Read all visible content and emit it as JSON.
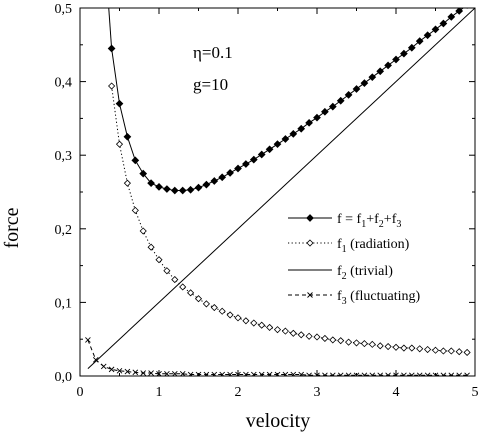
{
  "chart_data": {
    "type": "line",
    "xlabel": "velocity",
    "ylabel": "force",
    "xlim": [
      0,
      5
    ],
    "ylim": [
      0,
      0.5
    ],
    "xticks": [
      "0",
      "1",
      "2",
      "3",
      "4",
      "5"
    ],
    "yticks": [
      "0,0",
      "0,1",
      "0,2",
      "0,3",
      "0,4",
      "0,5"
    ],
    "grid": false,
    "legend_position": "right",
    "annotations": [
      {
        "text": "η=0.1"
      },
      {
        "text": "g=10"
      }
    ],
    "series": [
      {
        "name": "f = f1+f2+f3",
        "legend": {
          "base": "f = f",
          "parts": [
            [
              "1",
              "+f"
            ],
            [
              "2",
              "+f"
            ],
            [
              "3",
              ""
            ]
          ]
        },
        "marker": "filled-diamond",
        "line": "solid",
        "x": [
          0.4,
          0.5,
          0.6,
          0.7,
          0.8,
          0.9,
          1.0,
          1.1,
          1.2,
          1.3,
          1.4,
          1.5,
          1.6,
          1.7,
          1.8,
          1.9,
          2.0,
          2.1,
          2.2,
          2.3,
          2.4,
          2.5,
          2.6,
          2.7,
          2.8,
          2.9,
          3.0,
          3.1,
          3.2,
          3.3,
          3.4,
          3.5,
          3.6,
          3.7,
          3.8,
          3.9,
          4.0,
          4.1,
          4.2,
          4.3,
          4.4,
          4.5,
          4.6,
          4.7,
          4.8,
          4.9
        ],
        "y": [
          0.445,
          0.37,
          0.325,
          0.293,
          0.275,
          0.262,
          0.257,
          0.254,
          0.252,
          0.252,
          0.253,
          0.256,
          0.26,
          0.265,
          0.27,
          0.276,
          0.282,
          0.288,
          0.294,
          0.301,
          0.308,
          0.315,
          0.322,
          0.329,
          0.336,
          0.344,
          0.351,
          0.359,
          0.366,
          0.374,
          0.382,
          0.39,
          0.398,
          0.406,
          0.414,
          0.422,
          0.43,
          0.438,
          0.446,
          0.455,
          0.463,
          0.471,
          0.479,
          0.488,
          0.496,
          0.504
        ]
      },
      {
        "name": "f1 (radiation)",
        "legend": {
          "base": "f",
          "parts": [
            [
              "1",
              " (radiation)"
            ]
          ]
        },
        "marker": "open-diamond",
        "line": "dotted",
        "x": [
          0.4,
          0.5,
          0.6,
          0.7,
          0.8,
          0.9,
          1.0,
          1.1,
          1.2,
          1.3,
          1.4,
          1.5,
          1.6,
          1.7,
          1.8,
          1.9,
          2.0,
          2.1,
          2.2,
          2.3,
          2.4,
          2.5,
          2.6,
          2.7,
          2.8,
          2.9,
          3.0,
          3.1,
          3.2,
          3.3,
          3.4,
          3.5,
          3.6,
          3.7,
          3.8,
          3.9,
          4.0,
          4.1,
          4.2,
          4.3,
          4.4,
          4.5,
          4.6,
          4.7,
          4.8,
          4.9
        ],
        "y": [
          0.394,
          0.315,
          0.262,
          0.225,
          0.197,
          0.175,
          0.158,
          0.143,
          0.131,
          0.121,
          0.113,
          0.105,
          0.098,
          0.093,
          0.088,
          0.083,
          0.079,
          0.075,
          0.072,
          0.069,
          0.066,
          0.063,
          0.061,
          0.058,
          0.056,
          0.054,
          0.053,
          0.051,
          0.049,
          0.048,
          0.046,
          0.045,
          0.044,
          0.043,
          0.041,
          0.04,
          0.039,
          0.038,
          0.038,
          0.037,
          0.036,
          0.035,
          0.034,
          0.034,
          0.033,
          0.032
        ]
      },
      {
        "name": "f2 (trivial)",
        "legend": {
          "base": "f",
          "parts": [
            [
              "2",
              " (trivial)"
            ]
          ]
        },
        "marker": "none",
        "line": "solid",
        "x": [
          0.1,
          5.0
        ],
        "y": [
          0.01,
          0.5
        ]
      },
      {
        "name": "f3 (fluctuating)",
        "legend": {
          "base": "f",
          "parts": [
            [
              "3",
              " (fluctuating)"
            ]
          ]
        },
        "marker": "x",
        "line": "dashed",
        "x": [
          0.1,
          0.2,
          0.3,
          0.4,
          0.5,
          0.6,
          0.7,
          0.8,
          0.9,
          1.0,
          1.1,
          1.2,
          1.3,
          1.4,
          1.5,
          1.6,
          1.7,
          1.8,
          1.9,
          2.0,
          2.1,
          2.2,
          2.3,
          2.4,
          2.5,
          2.6,
          2.7,
          2.8,
          2.9,
          3.0,
          3.1,
          3.2,
          3.3,
          3.4,
          3.5,
          3.6,
          3.7,
          3.8,
          3.9,
          4.0,
          4.1,
          4.2,
          4.3,
          4.4,
          4.5,
          4.6,
          4.7,
          4.8,
          4.9
        ],
        "y": [
          0.049,
          0.022,
          0.013,
          0.009,
          0.007,
          0.006,
          0.005,
          0.004,
          0.004,
          0.003,
          0.003,
          0.003,
          0.003,
          0.002,
          0.002,
          0.002,
          0.002,
          0.002,
          0.002,
          0.002,
          0.002,
          0.002,
          0.002,
          0.002,
          0.002,
          0.002,
          0.002,
          0.002,
          0.001,
          0.001,
          0.001,
          0.001,
          0.001,
          0.001,
          0.001,
          0.001,
          0.001,
          0.001,
          0.001,
          0.001,
          0.001,
          0.001,
          0.001,
          0.001,
          0.001,
          0.001,
          0.001,
          0.001,
          0.001
        ]
      }
    ]
  }
}
